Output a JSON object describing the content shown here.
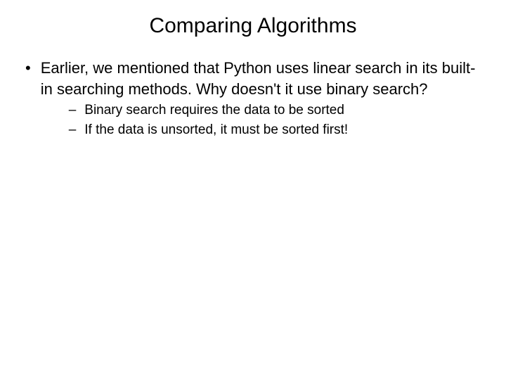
{
  "slide": {
    "title": "Comparing Algorithms",
    "title_fontsize": 30,
    "body_fontsize": 22,
    "sub_fontsize": 19,
    "background_color": "#ffffff",
    "text_color": "#000000",
    "bullets": [
      {
        "marker": "•",
        "text": "Earlier, we mentioned that Python uses linear search in its built-in searching methods. Why doesn't it use binary search?",
        "sub_bullets": [
          {
            "marker": "–",
            "text": "Binary search requires the data to be sorted"
          },
          {
            "marker": "–",
            "text": "If the data is unsorted, it must be sorted first!"
          }
        ]
      }
    ]
  }
}
